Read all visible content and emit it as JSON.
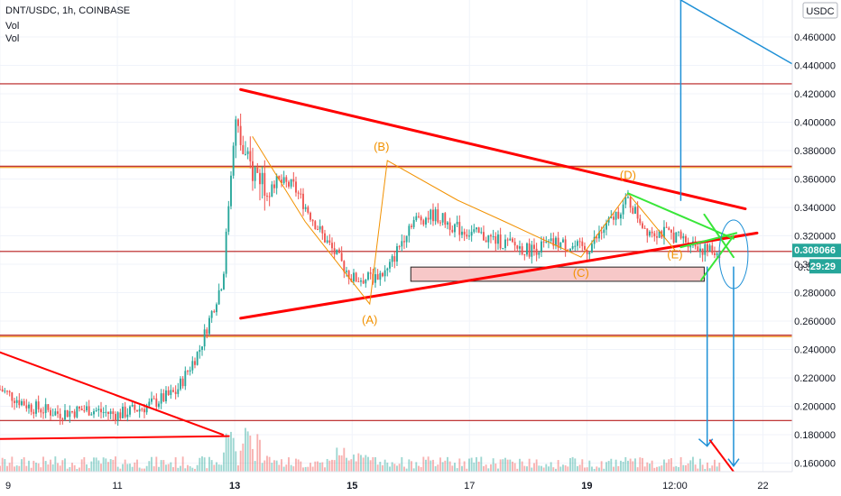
{
  "header": {
    "symbol": "DNT/USDC, 1h, COINBASE",
    "vol1": "Vol",
    "vol2": "Vol"
  },
  "currency_badge": "USDC",
  "price_tag": {
    "price": "0.308066",
    "countdown": "29:29",
    "partial_price": "0.3"
  },
  "colors": {
    "up": "#26a69a",
    "down": "#ef5350",
    "trend": "#ff0000",
    "level": "#b71c1c",
    "wave": "#f29100",
    "green": "#39e639",
    "blue": "#1e90d6",
    "zone": "#f7c8c8"
  },
  "chart_data": {
    "type": "candlestick",
    "y_axis": {
      "range": [
        0.154,
        0.486
      ],
      "ticks": [
        "0.460000",
        "0.440000",
        "0.420000",
        "0.400000",
        "0.380000",
        "0.360000",
        "0.340000",
        "0.320000",
        "0.300000",
        "0.280000",
        "0.260000",
        "0.240000",
        "0.220000",
        "0.200000",
        "0.180000",
        "0.160000"
      ],
      "tick_values": [
        0.46,
        0.44,
        0.42,
        0.4,
        0.38,
        0.36,
        0.34,
        0.32,
        0.3,
        0.28,
        0.26,
        0.24,
        0.22,
        0.2,
        0.18,
        0.16
      ]
    },
    "x_axis": {
      "range": [
        0,
        13.5
      ],
      "tick_labels": [
        "9",
        "11",
        "13",
        "15",
        "17",
        "19",
        "12:00",
        "22"
      ],
      "tick_positions": [
        0,
        2,
        4,
        6,
        8,
        10,
        11.5,
        13
      ],
      "bold": [
        "13",
        "15",
        "19"
      ]
    },
    "path": [
      [
        0,
        0.212
      ],
      [
        0.5,
        0.2
      ],
      [
        1,
        0.195
      ],
      [
        1.5,
        0.198
      ],
      [
        2,
        0.194
      ],
      [
        2.5,
        0.2
      ],
      [
        3,
        0.21
      ],
      [
        3.4,
        0.24
      ],
      [
        3.8,
        0.29
      ],
      [
        4,
        0.4
      ],
      [
        4.2,
        0.37
      ],
      [
        4.5,
        0.36
      ],
      [
        5,
        0.355
      ],
      [
        5.5,
        0.32
      ],
      [
        6,
        0.29
      ],
      [
        6.3,
        0.29
      ],
      [
        6.6,
        0.295
      ],
      [
        7,
        0.33
      ],
      [
        7.4,
        0.335
      ],
      [
        7.8,
        0.325
      ],
      [
        8.2,
        0.32
      ],
      [
        8.6,
        0.315
      ],
      [
        9,
        0.31
      ],
      [
        9.5,
        0.315
      ],
      [
        10,
        0.31
      ],
      [
        10.4,
        0.33
      ],
      [
        10.7,
        0.345
      ],
      [
        11,
        0.325
      ],
      [
        11.5,
        0.32
      ],
      [
        11.8,
        0.315
      ],
      [
        12,
        0.31
      ],
      [
        12.3,
        0.308
      ]
    ],
    "levels": [
      0.427,
      0.369,
      0.309,
      0.25,
      0.19
    ],
    "level_colors": [
      "#b71c1c",
      "#b71c1c",
      "#b71c1c",
      "#b71c1c",
      "#b71c1c"
    ],
    "wave_labels": [
      {
        "text": "(A)",
        "x": 6.3,
        "y": 0.258
      },
      {
        "text": "(B)",
        "x": 6.5,
        "y": 0.38
      },
      {
        "text": "(C)",
        "x": 9.9,
        "y": 0.291
      },
      {
        "text": "(D)",
        "x": 10.7,
        "y": 0.36
      },
      {
        "text": "(E)",
        "x": 11.5,
        "y": 0.304
      }
    ]
  }
}
